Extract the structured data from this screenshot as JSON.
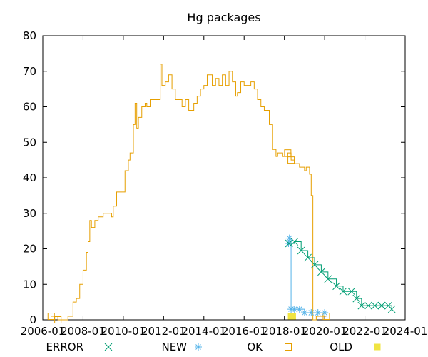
{
  "chart_data": {
    "type": "line",
    "title": "Hg packages",
    "xlabel": "",
    "ylabel": "",
    "grid": false,
    "legend_position": "bottom",
    "xlim": [
      "2006-01",
      "2024-01"
    ],
    "ylim": [
      0,
      80
    ],
    "x_ticks": [
      "2006-01",
      "2008-01",
      "2010-01",
      "2012-01",
      "2014-01",
      "2016-01",
      "2018-01",
      "2020-01",
      "2022-01",
      "2024-01"
    ],
    "x_tick_labels": [
      "2006-01",
      "2008-01",
      "2010-01",
      "2012-01",
      "2014-01",
      "2016-01",
      "2018-01",
      "2020-01",
      "2022-01",
      "2024-01"
    ],
    "y_ticks": [
      0,
      10,
      20,
      30,
      40,
      50,
      60,
      70,
      80
    ],
    "y_tick_labels": [
      "0",
      "10",
      "20",
      "30",
      "40",
      "50",
      "60",
      "70",
      "80"
    ],
    "series": [
      {
        "name": "ERROR",
        "color": "#009e73",
        "marker": "x",
        "points": [
          [
            "2018-03-25",
            21.5
          ],
          [
            "2018-07-01",
            22
          ],
          [
            "2018-11-01",
            19.5
          ],
          [
            "2019-03-01",
            17.5
          ],
          [
            "2019-07-01",
            15.5
          ],
          [
            "2019-11-01",
            13.5
          ],
          [
            "2020-03-01",
            11.5
          ],
          [
            "2020-08-01",
            9.5
          ],
          [
            "2020-12-01",
            8
          ],
          [
            "2021-05-01",
            8
          ],
          [
            "2021-08-01",
            6
          ],
          [
            "2021-11-01",
            4
          ],
          [
            "2022-03-01",
            4
          ],
          [
            "2022-07-01",
            4
          ],
          [
            "2022-11-01",
            4
          ],
          [
            "2023-03-01",
            4
          ],
          [
            "2023-05-01",
            3
          ]
        ]
      },
      {
        "name": "NEW",
        "color": "#56b4e9",
        "marker": "star",
        "points": [
          [
            "2018-03-15",
            21.5
          ],
          [
            "2018-04-01",
            23
          ],
          [
            "2018-05-01",
            3
          ],
          [
            "2018-07-01",
            3
          ],
          [
            "2018-10-01",
            3
          ],
          [
            "2019-01-01",
            2
          ],
          [
            "2019-05-01",
            2
          ],
          [
            "2019-09-01",
            2
          ],
          [
            "2020-01-01",
            2
          ]
        ]
      },
      {
        "name": "OK",
        "color": "#e69f00",
        "marker": "square",
        "points": [
          [
            "2006-06-01",
            1
          ],
          [
            "2006-09-01",
            1
          ],
          [
            "2006-10-01",
            0
          ],
          [
            "2007-03-01",
            0
          ],
          [
            "2007-04-01",
            1
          ],
          [
            "2007-07-01",
            5
          ],
          [
            "2007-09-01",
            6
          ],
          [
            "2007-11-01",
            10
          ],
          [
            "2008-01-01",
            14
          ],
          [
            "2008-03-01",
            19
          ],
          [
            "2008-04-01",
            22
          ],
          [
            "2008-05-01",
            28
          ],
          [
            "2008-06-01",
            26
          ],
          [
            "2008-08-01",
            28
          ],
          [
            "2008-10-01",
            29
          ],
          [
            "2009-01-01",
            30
          ],
          [
            "2009-04-01",
            30
          ],
          [
            "2009-06-01",
            29
          ],
          [
            "2009-07-01",
            32
          ],
          [
            "2009-09-01",
            36
          ],
          [
            "2009-12-01",
            36
          ],
          [
            "2010-02-01",
            42
          ],
          [
            "2010-04-01",
            45
          ],
          [
            "2010-05-01",
            47
          ],
          [
            "2010-07-01",
            55
          ],
          [
            "2010-08-01",
            61
          ],
          [
            "2010-09-01",
            54
          ],
          [
            "2010-10-01",
            57
          ],
          [
            "2010-12-01",
            60
          ],
          [
            "2011-02-01",
            61
          ],
          [
            "2011-03-01",
            60
          ],
          [
            "2011-05-01",
            62
          ],
          [
            "2011-09-01",
            62
          ],
          [
            "2011-11-01",
            72
          ],
          [
            "2011-12-01",
            66
          ],
          [
            "2012-02-01",
            67
          ],
          [
            "2012-04-01",
            69
          ],
          [
            "2012-06-01",
            65
          ],
          [
            "2012-08-01",
            62
          ],
          [
            "2012-10-01",
            62
          ],
          [
            "2012-12-01",
            60
          ],
          [
            "2013-02-01",
            62
          ],
          [
            "2013-04-01",
            59
          ],
          [
            "2013-07-01",
            61
          ],
          [
            "2013-09-01",
            63
          ],
          [
            "2013-11-01",
            65
          ],
          [
            "2014-01-01",
            66
          ],
          [
            "2014-03-01",
            69
          ],
          [
            "2014-06-01",
            66
          ],
          [
            "2014-08-01",
            68
          ],
          [
            "2014-10-01",
            66
          ],
          [
            "2014-12-01",
            69
          ],
          [
            "2015-02-01",
            66
          ],
          [
            "2015-04-01",
            70
          ],
          [
            "2015-06-01",
            67
          ],
          [
            "2015-08-01",
            63
          ],
          [
            "2015-09-01",
            64
          ],
          [
            "2015-11-01",
            67
          ],
          [
            "2016-01-01",
            66
          ],
          [
            "2016-03-01",
            66
          ],
          [
            "2016-05-01",
            67
          ],
          [
            "2016-07-01",
            65
          ],
          [
            "2016-09-01",
            62
          ],
          [
            "2016-11-01",
            60
          ],
          [
            "2017-01-01",
            59
          ],
          [
            "2017-04-01",
            55
          ],
          [
            "2017-06-01",
            48
          ],
          [
            "2017-08-01",
            46
          ],
          [
            "2017-09-01",
            47
          ],
          [
            "2017-12-01",
            46
          ],
          [
            "2018-03-01",
            47
          ],
          [
            "2018-05-01",
            45
          ],
          [
            "2018-07-01",
            44
          ],
          [
            "2018-10-01",
            43
          ],
          [
            "2019-01-01",
            42
          ],
          [
            "2019-02-01",
            43
          ],
          [
            "2019-04-01",
            41
          ],
          [
            "2019-05-01",
            35
          ],
          [
            "2019-06-01",
            0
          ],
          [
            "2019-08-01",
            1
          ],
          [
            "2019-11-01",
            1
          ],
          [
            "2020-02-01",
            1
          ]
        ]
      },
      {
        "name": "OLD",
        "color": "#f0e442",
        "marker": "filled-square",
        "points": [
          [
            "2018-05-01",
            1
          ],
          [
            "2018-06-01",
            1
          ]
        ]
      }
    ]
  }
}
